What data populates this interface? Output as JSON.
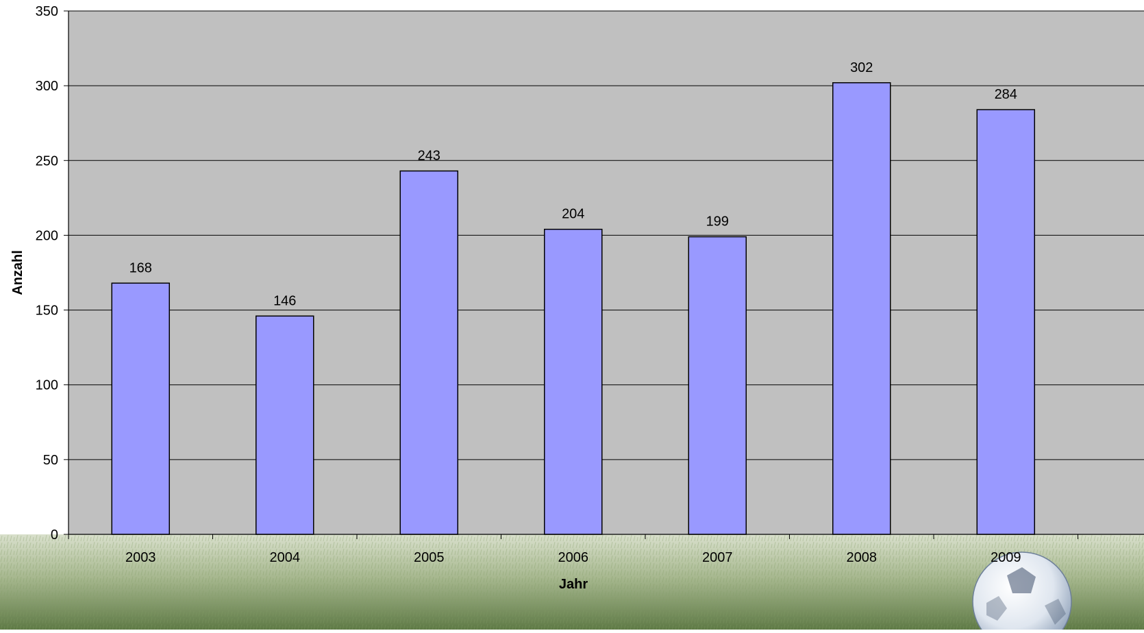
{
  "colors": {
    "plot_background": "#c0c0c0",
    "bar_fill": "#9999ff",
    "bar_stroke": "#000000",
    "grid": "#000000",
    "grass_light": "#b9c7a4",
    "grass_dark": "#5f7a46",
    "page_background": "#ffffff"
  },
  "decoration": {
    "background_image": "grass-field-with-football",
    "icon": "football-icon"
  },
  "chart_data": {
    "type": "bar",
    "categories": [
      "2003",
      "2004",
      "2005",
      "2006",
      "2007",
      "2008",
      "2009"
    ],
    "series": [
      {
        "values": [
          168,
          146,
          243,
          204,
          199,
          302,
          284
        ]
      }
    ],
    "data_labels": [
      "168",
      "146",
      "243",
      "204",
      "199",
      "302",
      "284"
    ],
    "title": "",
    "xlabel": "Jahr",
    "ylabel": "Anzahl",
    "ylim": [
      0,
      350
    ],
    "yticks": [
      0,
      50,
      100,
      150,
      200,
      250,
      300,
      350
    ],
    "ytick_labels": [
      "0",
      "50",
      "100",
      "150",
      "200",
      "250",
      "300",
      "350"
    ],
    "grid": true,
    "legend": "none"
  }
}
